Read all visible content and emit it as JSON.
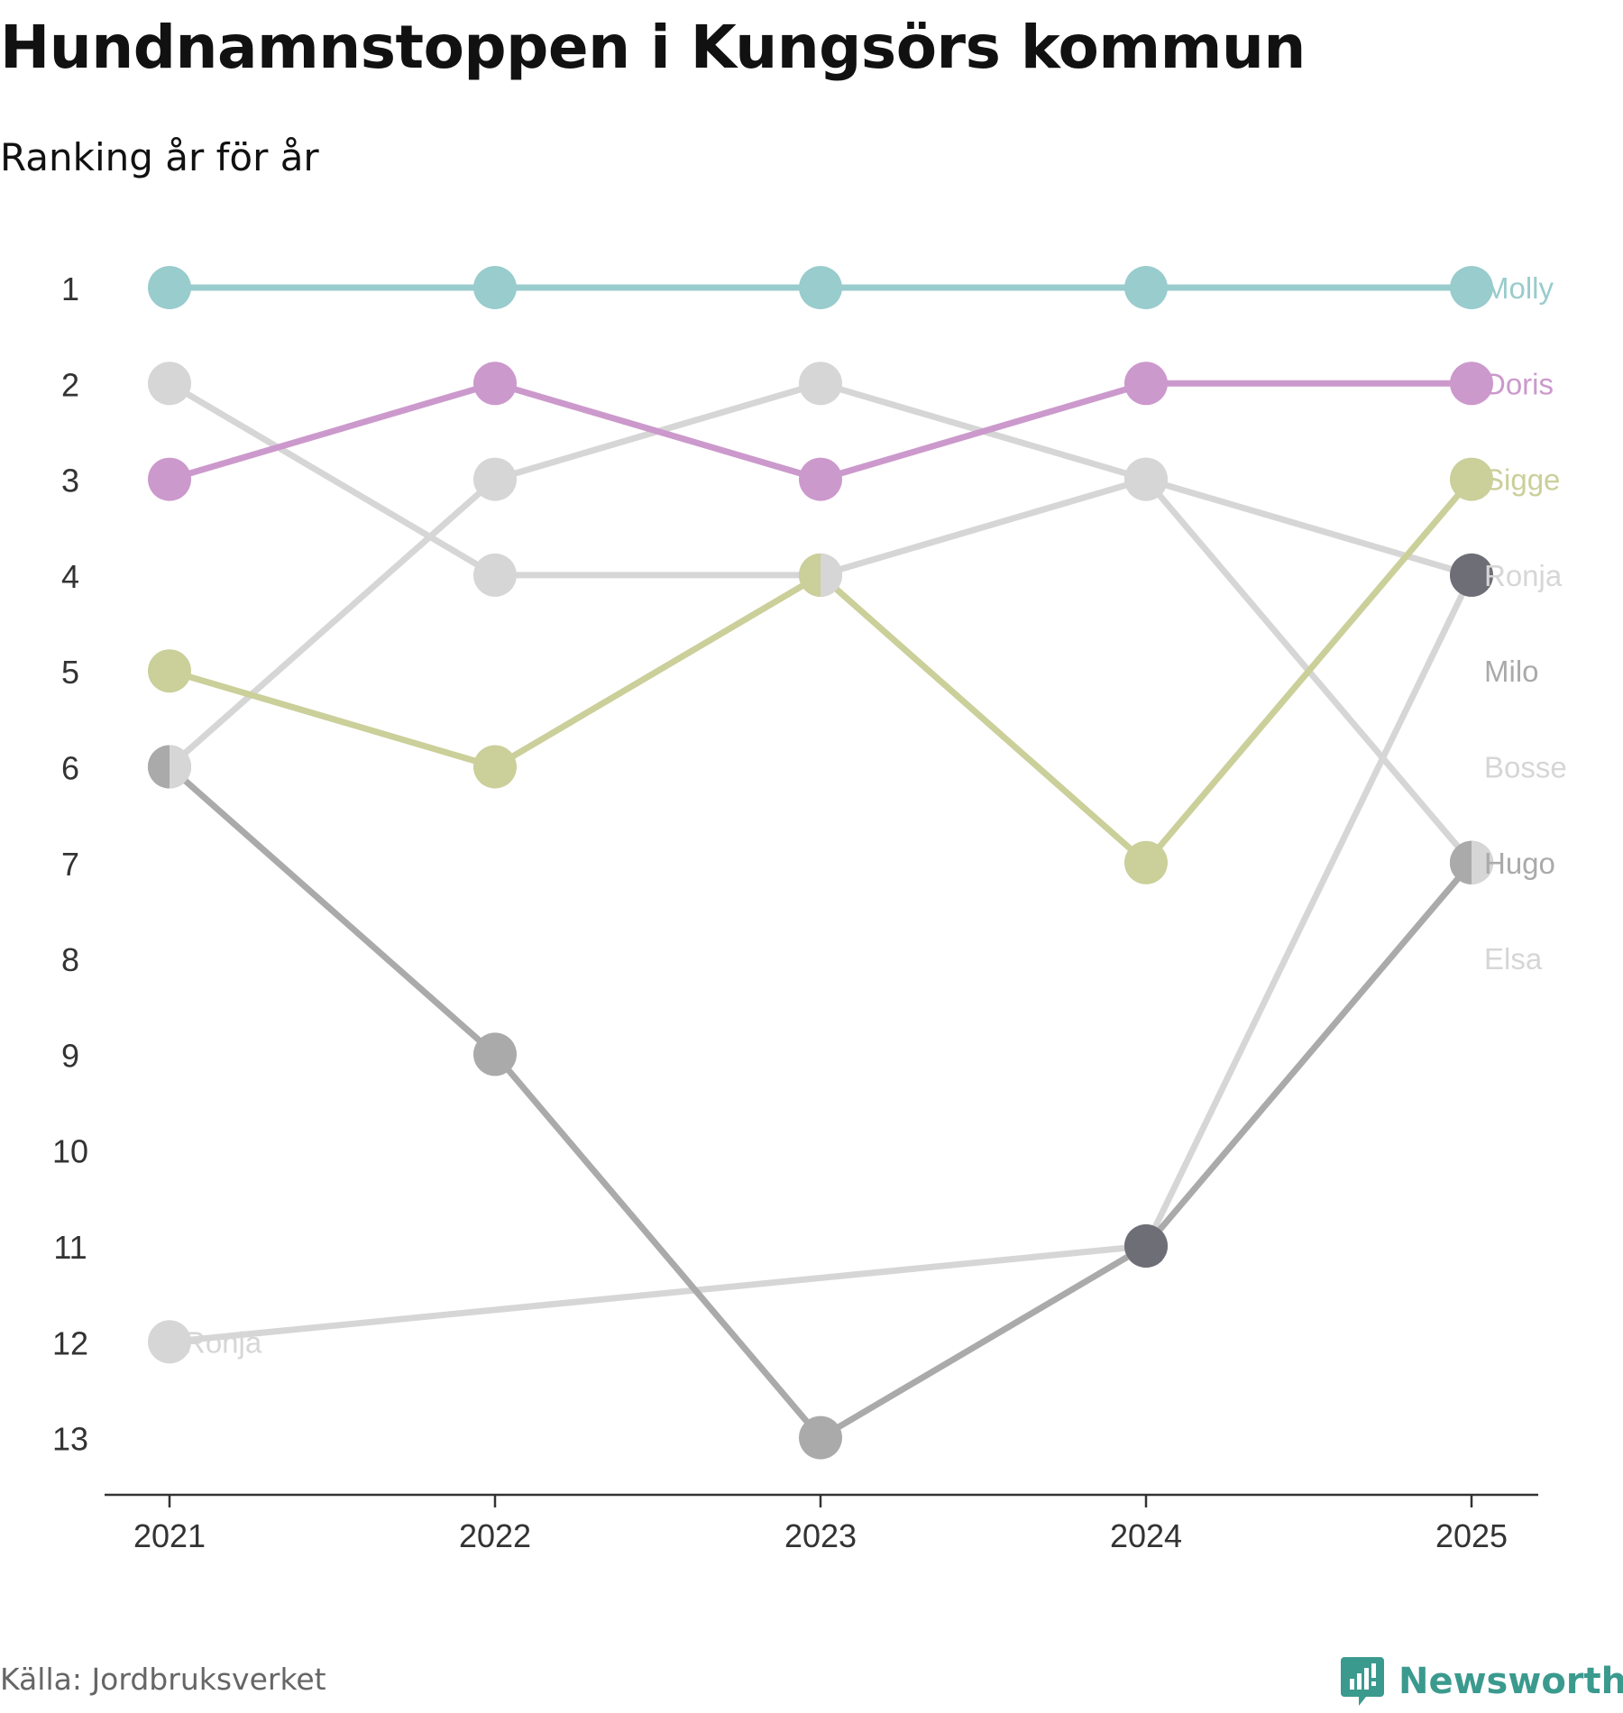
{
  "title": "Hundnamnstoppen i Kungsörs kommun",
  "subtitle": "Ranking år för år",
  "source": "Källa: Jordbruksverket",
  "brand": {
    "name": "Newsworthy",
    "icon": "newsworthy-logo-icon",
    "color": "#3b9a8e"
  },
  "chart_data": {
    "type": "line",
    "title": "Hundnamnstoppen i Kungsörs kommun",
    "subtitle": "Ranking år för år",
    "xlabel": "",
    "ylabel": "",
    "x": [
      "2021",
      "2022",
      "2023",
      "2024",
      "2025"
    ],
    "yticks": [
      1,
      2,
      3,
      4,
      5,
      6,
      7,
      8,
      9,
      10,
      11,
      12,
      13
    ],
    "ylim": [
      13,
      1
    ],
    "y_inverted": true,
    "series": [
      {
        "name": "Elsa",
        "color": "#d6d6d6",
        "values": [
          6,
          3,
          2,
          3,
          7
        ],
        "end_label": "Elsa",
        "end_label_rank": 8
      },
      {
        "name": "Bosse",
        "color": "#d6d6d6",
        "values": [
          2,
          4,
          4,
          3,
          4
        ],
        "end_label": "Bosse",
        "end_label_rank": 6
      },
      {
        "name": "Ronja",
        "color": "#d6d6d6",
        "values": [
          12,
          null,
          null,
          11,
          4
        ],
        "end_label": "Ronja",
        "end_label_rank": 4,
        "start_label": "Ronja",
        "start_label_rank": 12
      },
      {
        "name": "Milo",
        "color": "#aaaaaa",
        "values": [
          6,
          9,
          13,
          11,
          7
        ],
        "end_label": "Milo",
        "end_label_rank": 5
      },
      {
        "name": "Hugo",
        "color": "#aaaaaa",
        "values": [
          null,
          null,
          null,
          null,
          7
        ],
        "end_label": "Hugo",
        "end_label_rank": 7
      },
      {
        "name": "Sigge",
        "color": "#cbcf99",
        "values": [
          5,
          6,
          4,
          7,
          3
        ],
        "end_label": "Sigge",
        "end_label_rank": 3
      },
      {
        "name": "Doris",
        "color": "#cc99cc",
        "values": [
          3,
          2,
          3,
          2,
          2
        ],
        "end_label": "Doris",
        "end_label_rank": 2
      },
      {
        "name": "Molly",
        "color": "#99cccc",
        "values": [
          1,
          1,
          1,
          1,
          1
        ],
        "end_label": "Molly",
        "end_label_rank": 1
      }
    ],
    "highlight_points": [
      {
        "x": "2024",
        "rank": 11,
        "color": "#6e6e76"
      },
      {
        "x": "2025",
        "rank": 4,
        "color": "#6e6e76"
      }
    ],
    "split_points": [
      {
        "x": "2021",
        "rank": 6,
        "left": "#aaaaaa",
        "right": "#d6d6d6"
      },
      {
        "x": "2023",
        "rank": 4,
        "left": "#cbcf99",
        "right": "#d6d6d6"
      },
      {
        "x": "2025",
        "rank": 7,
        "left": "#aaaaaa",
        "right": "#d6d6d6"
      }
    ]
  }
}
